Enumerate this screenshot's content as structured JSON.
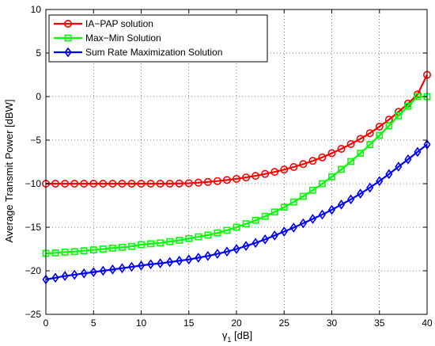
{
  "chart_data": {
    "type": "line",
    "xlabel_main": "γ",
    "xlabel_sub": "1",
    "xlabel_unit": " [dB]",
    "ylabel": "Average Transmit Power [dBW]",
    "xlim": [
      0,
      40
    ],
    "ylim": [
      -25,
      10
    ],
    "xticks": [
      "0",
      "5",
      "10",
      "15",
      "20",
      "25",
      "30",
      "35",
      "40"
    ],
    "yticks": [
      "−25",
      "−20",
      "−15",
      "−10",
      "−5",
      "0",
      "5",
      "10"
    ],
    "grid": true,
    "legend_position": "top-left",
    "x": [
      0,
      1,
      2,
      3,
      4,
      5,
      6,
      7,
      8,
      9,
      10,
      11,
      12,
      13,
      14,
      15,
      16,
      17,
      18,
      19,
      20,
      21,
      22,
      23,
      24,
      25,
      26,
      27,
      28,
      29,
      30,
      31,
      32,
      33,
      34,
      35,
      36,
      37,
      38,
      39,
      40
    ],
    "series": [
      {
        "name": "IA−PAP solution",
        "color": "#ff0000",
        "marker": "circle",
        "values": [
          -10,
          -10,
          -10,
          -10,
          -10,
          -10,
          -10,
          -10,
          -10,
          -10,
          -10,
          -10,
          -10,
          -10,
          -9.98,
          -9.95,
          -9.88,
          -9.8,
          -9.7,
          -9.58,
          -9.45,
          -9.28,
          -9.1,
          -8.88,
          -8.65,
          -8.38,
          -8.08,
          -7.75,
          -7.38,
          -6.98,
          -6.5,
          -6.0,
          -5.45,
          -4.85,
          -4.2,
          -3.45,
          -2.65,
          -1.75,
          -0.8,
          0.25,
          2.5
        ]
      },
      {
        "name": "Max−Min Solution",
        "color": "#00ff00",
        "marker": "square",
        "values": [
          -18,
          -17.95,
          -17.85,
          -17.8,
          -17.7,
          -17.6,
          -17.5,
          -17.4,
          -17.3,
          -17.2,
          -17.0,
          -16.9,
          -16.8,
          -16.65,
          -16.5,
          -16.3,
          -16.1,
          -15.9,
          -15.65,
          -15.35,
          -15.0,
          -14.6,
          -14.2,
          -13.75,
          -13.25,
          -12.7,
          -12.1,
          -11.45,
          -10.75,
          -10.0,
          -9.2,
          -8.35,
          -7.45,
          -6.5,
          -5.5,
          -4.45,
          -3.35,
          -2.2,
          -1.1,
          0.0,
          0.0
        ]
      },
      {
        "name": "Sum Rate Maximization Solution",
        "color": "#0000ff",
        "marker": "diamond",
        "values": [
          -21,
          -20.8,
          -20.6,
          -20.45,
          -20.3,
          -20.15,
          -20.0,
          -19.85,
          -19.7,
          -19.55,
          -19.4,
          -19.25,
          -19.15,
          -19.0,
          -18.85,
          -18.7,
          -18.5,
          -18.3,
          -18.05,
          -17.8,
          -17.5,
          -17.15,
          -16.8,
          -16.4,
          -15.95,
          -15.5,
          -15.05,
          -14.55,
          -14.05,
          -13.55,
          -13.0,
          -12.4,
          -11.8,
          -11.15,
          -10.45,
          -9.7,
          -8.9,
          -8.05,
          -7.2,
          -6.35,
          -5.5
        ]
      }
    ]
  }
}
